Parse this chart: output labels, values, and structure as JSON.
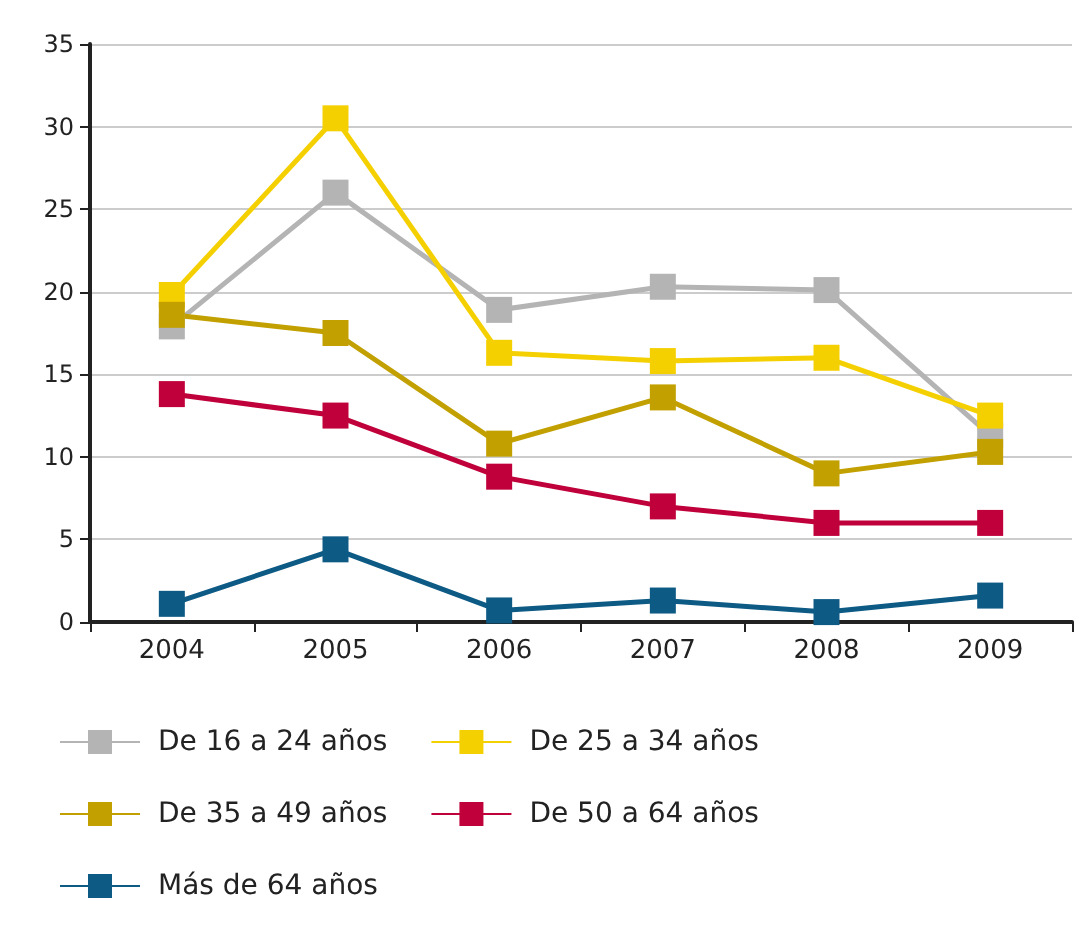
{
  "chart_data": {
    "type": "line",
    "categories": [
      "2004",
      "2005",
      "2006",
      "2007",
      "2008",
      "2009"
    ],
    "series": [
      {
        "name": "De 16 a 24 años",
        "color": "#b4b4b4",
        "values": [
          17.9,
          26,
          18.9,
          20.3,
          20.1,
          11.3
        ]
      },
      {
        "name": "De 25 a 34 años",
        "color": "#f5d000",
        "values": [
          19.8,
          30.5,
          16.3,
          15.8,
          16,
          12.5
        ]
      },
      {
        "name": "De 35 a 49 años",
        "color": "#c2a000",
        "values": [
          18.6,
          17.5,
          10.8,
          13.6,
          9,
          10.3
        ]
      },
      {
        "name": "De 50 a 64 años",
        "color": "#c0003a",
        "values": [
          13.8,
          12.5,
          8.8,
          7,
          6,
          6
        ]
      },
      {
        "name": "Más de 64 años",
        "color": "#0d5a85",
        "values": [
          1.1,
          4.4,
          0.7,
          1.3,
          0.6,
          1.6
        ]
      }
    ],
    "ylim": [
      0,
      35
    ],
    "yticks": [
      0,
      5,
      10,
      15,
      20,
      25,
      30,
      35
    ],
    "grid": "y",
    "legend": "bottom",
    "marker": "square",
    "line_style": "solid"
  }
}
